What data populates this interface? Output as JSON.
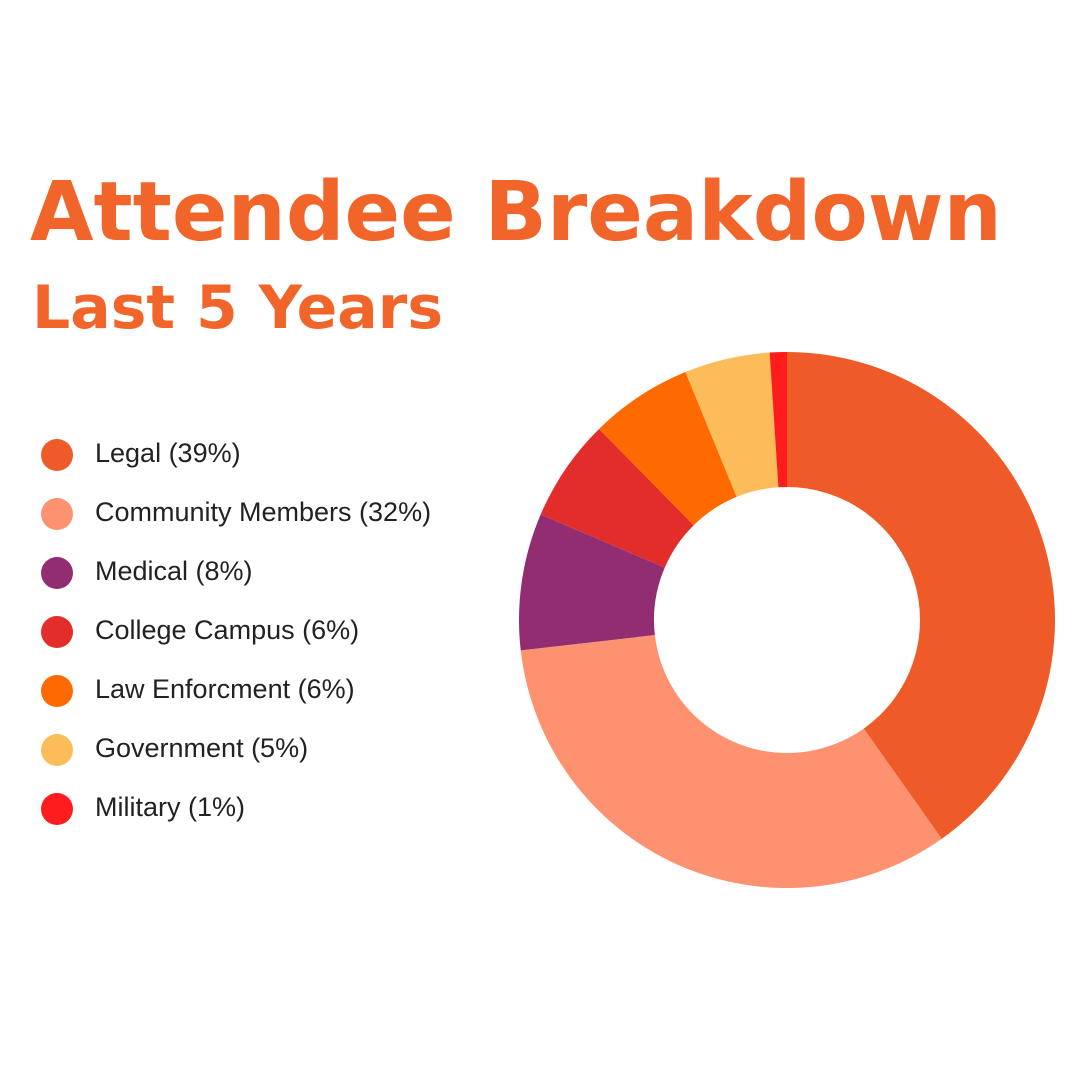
{
  "chart_data": {
    "type": "donut",
    "title": "Attendee Breakdown",
    "subtitle": "Last 5 Years",
    "categories": [
      "Legal (39%)",
      "Community Members (32%)",
      "Medical (8%)",
      "College Campus (6%)",
      "Law Enforcment (6%)",
      "Government (5%)",
      "Military (1%)"
    ],
    "values": [
      39,
      32,
      8,
      6,
      6,
      5,
      1
    ],
    "colors": [
      "#ee5a28",
      "#fe9170",
      "#922d72",
      "#e32d2b",
      "#fe6a00",
      "#fdbc5a",
      "#fe1c1c"
    ],
    "legend": "left"
  }
}
